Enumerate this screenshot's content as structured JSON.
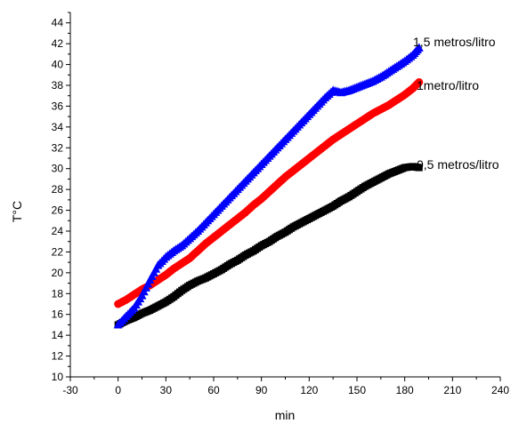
{
  "chart_data": {
    "type": "scatter",
    "xlabel": "min",
    "ylabel": "T°C",
    "xlim": [
      -30,
      240
    ],
    "ylim": [
      10,
      45
    ],
    "xticks": [
      -30,
      0,
      30,
      60,
      90,
      120,
      150,
      180,
      210,
      240
    ],
    "yticks": [
      10,
      12,
      14,
      16,
      18,
      20,
      22,
      24,
      26,
      28,
      30,
      32,
      34,
      36,
      38,
      40,
      42,
      44
    ],
    "grid": false,
    "legend": "none",
    "series": [
      {
        "name": "0,5 metros/litro",
        "color": "#000000",
        "marker": "square",
        "x": [
          0,
          5,
          10,
          15,
          20,
          25,
          30,
          35,
          40,
          45,
          50,
          55,
          60,
          65,
          70,
          75,
          80,
          85,
          90,
          95,
          100,
          105,
          110,
          115,
          120,
          125,
          130,
          135,
          140,
          145,
          150,
          155,
          160,
          165,
          170,
          175,
          180,
          185,
          189
        ],
        "y": [
          15.0,
          15.4,
          15.7,
          16.1,
          16.4,
          16.8,
          17.2,
          17.7,
          18.3,
          18.8,
          19.2,
          19.5,
          19.9,
          20.3,
          20.8,
          21.2,
          21.7,
          22.1,
          22.6,
          23.0,
          23.5,
          23.9,
          24.4,
          24.8,
          25.2,
          25.6,
          26.0,
          26.4,
          26.9,
          27.3,
          27.8,
          28.3,
          28.7,
          29.1,
          29.5,
          29.8,
          30.1,
          30.2,
          30.1
        ]
      },
      {
        "name": "1metro/litro",
        "color": "#ff0000",
        "marker": "circle",
        "x": [
          0,
          5,
          10,
          15,
          20,
          25,
          30,
          35,
          40,
          45,
          50,
          55,
          60,
          65,
          70,
          75,
          80,
          85,
          90,
          95,
          100,
          105,
          110,
          115,
          120,
          125,
          130,
          135,
          140,
          145,
          150,
          155,
          160,
          165,
          170,
          175,
          180,
          185,
          189
        ],
        "y": [
          17.0,
          17.4,
          17.9,
          18.4,
          18.8,
          19.3,
          19.8,
          20.4,
          20.9,
          21.4,
          22.1,
          22.8,
          23.4,
          24.0,
          24.6,
          25.2,
          25.8,
          26.5,
          27.1,
          27.8,
          28.5,
          29.2,
          29.8,
          30.4,
          31.0,
          31.6,
          32.2,
          32.8,
          33.3,
          33.8,
          34.3,
          34.8,
          35.3,
          35.7,
          36.1,
          36.6,
          37.1,
          37.7,
          38.3
        ]
      },
      {
        "name": "1,5 metros/litro",
        "color": "#0000ff",
        "marker": "triangle",
        "x": [
          0,
          5,
          10,
          15,
          20,
          25,
          30,
          35,
          40,
          45,
          50,
          55,
          60,
          65,
          70,
          75,
          80,
          85,
          90,
          95,
          100,
          105,
          110,
          115,
          120,
          125,
          130,
          135,
          140,
          145,
          150,
          155,
          160,
          165,
          170,
          175,
          180,
          185,
          189
        ],
        "y": [
          15.0,
          15.8,
          16.6,
          17.8,
          19.3,
          20.7,
          21.5,
          22.1,
          22.6,
          23.3,
          24.0,
          24.8,
          25.6,
          26.4,
          27.2,
          28.0,
          28.8,
          29.6,
          30.4,
          31.2,
          32.0,
          32.8,
          33.6,
          34.4,
          35.2,
          36.0,
          36.8,
          37.5,
          37.3,
          37.5,
          37.8,
          38.1,
          38.4,
          38.8,
          39.3,
          39.8,
          40.3,
          40.9,
          41.6
        ]
      }
    ],
    "annotations": [
      "1,5 metros/litro",
      "1metro/litro",
      "0,5 metros/litro"
    ]
  }
}
